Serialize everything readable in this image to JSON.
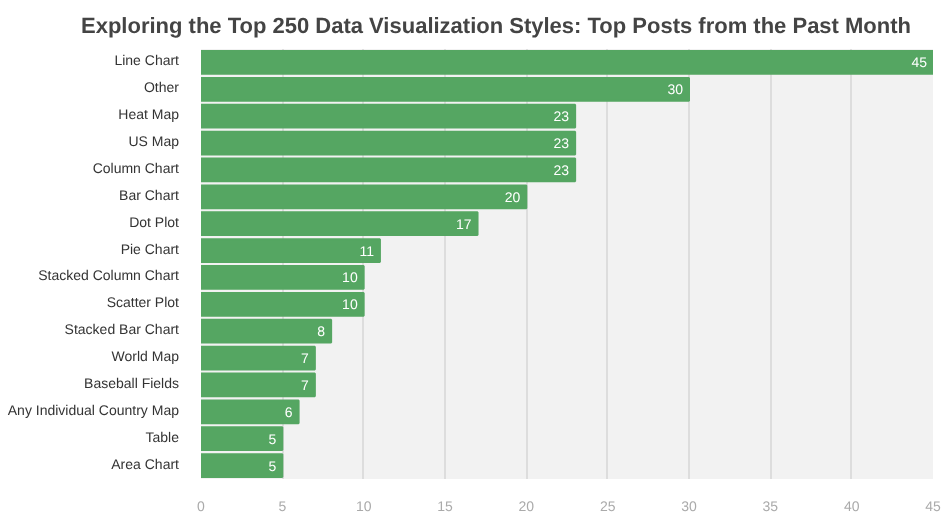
{
  "chart_data": {
    "type": "bar",
    "orientation": "horizontal",
    "title": "Exploring the Top 250 Data Visualization Styles: Top Posts from the Past Month",
    "categories": [
      "Line Chart",
      "Other",
      "Heat Map",
      "US Map",
      "Column Chart",
      "Bar Chart",
      "Dot Plot",
      "Pie Chart",
      "Stacked Column Chart",
      "Scatter Plot",
      "Stacked Bar Chart",
      "World Map",
      "Baseball Fields",
      "Any Individual Country Map",
      "Table",
      "Area Chart"
    ],
    "values": [
      45,
      30,
      23,
      23,
      23,
      20,
      17,
      11,
      10,
      10,
      8,
      7,
      7,
      6,
      5,
      5
    ],
    "color": "#55a662",
    "xlim": [
      0,
      45
    ],
    "xticks": [
      0,
      5,
      10,
      15,
      20,
      25,
      30,
      35,
      40,
      45
    ],
    "grid": "x",
    "data_labels": true
  }
}
